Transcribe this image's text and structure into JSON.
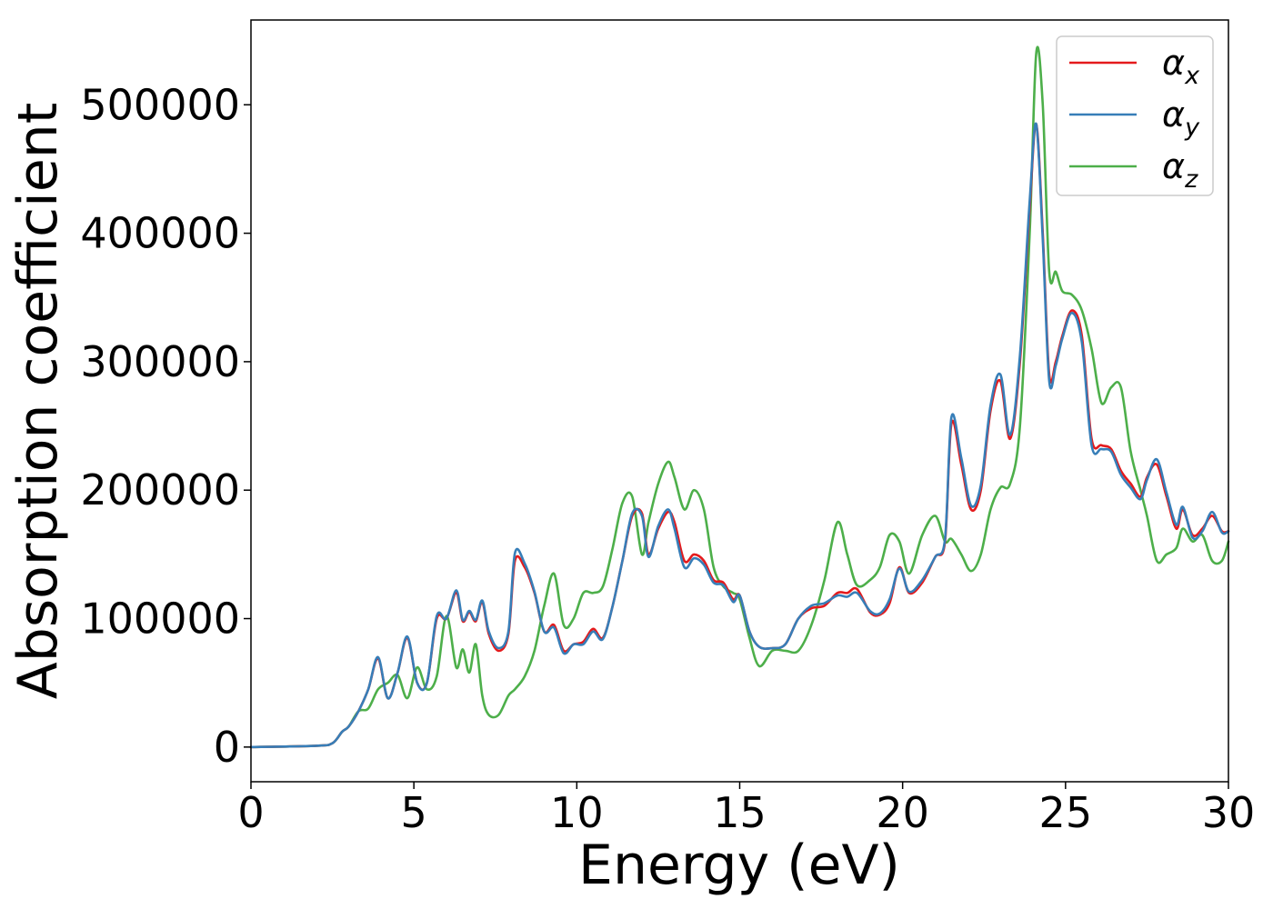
{
  "chart_data": {
    "type": "line",
    "xlabel": "Energy (eV)",
    "ylabel": "Absorption coefficient",
    "xlim": [
      0,
      30
    ],
    "ylim": [
      -27000,
      566000
    ],
    "xticks": [
      0,
      5,
      10,
      15,
      20,
      25,
      30
    ],
    "yticks": [
      0,
      100000,
      200000,
      300000,
      400000,
      500000
    ],
    "xtick_labels": [
      "0",
      "5",
      "10",
      "15",
      "20",
      "25",
      "30"
    ],
    "ytick_labels": [
      "0",
      "100000",
      "200000",
      "300000",
      "400000",
      "500000"
    ],
    "grid": false,
    "legend_position": "top-right",
    "series": [
      {
        "name": "α",
        "subscript": "x",
        "color": "#e41a1c",
        "x": [
          0,
          2,
          2.5,
          2.8,
          3.0,
          3.3,
          3.6,
          3.9,
          4.2,
          4.5,
          4.8,
          5.1,
          5.4,
          5.7,
          6.0,
          6.3,
          6.5,
          6.7,
          6.9,
          7.1,
          7.3,
          7.6,
          7.9,
          8.1,
          8.4,
          8.7,
          9.0,
          9.3,
          9.6,
          9.9,
          10.2,
          10.5,
          10.8,
          11.1,
          11.4,
          11.7,
          12.0,
          12.2,
          12.5,
          12.8,
          13.0,
          13.3,
          13.6,
          13.9,
          14.2,
          14.5,
          14.8,
          15.0,
          15.3,
          15.6,
          16.0,
          16.4,
          16.8,
          17.2,
          17.6,
          18.0,
          18.3,
          18.6,
          19.0,
          19.3,
          19.6,
          19.9,
          20.2,
          20.6,
          21.0,
          21.3,
          21.5,
          21.8,
          22.1,
          22.4,
          22.7,
          23.0,
          23.3,
          23.6,
          23.9,
          24.1,
          24.3,
          24.5,
          24.7,
          24.9,
          25.2,
          25.5,
          25.8,
          26.1,
          26.4,
          26.7,
          27.0,
          27.3,
          27.5,
          27.8,
          28.1,
          28.4,
          28.6,
          28.9,
          29.2,
          29.5,
          29.8,
          30
        ],
        "y": [
          0,
          1000,
          3000,
          12000,
          16000,
          28000,
          45000,
          69000,
          38000,
          58000,
          85000,
          50000,
          50000,
          100000,
          100000,
          120000,
          98000,
          105000,
          98000,
          113000,
          88000,
          75000,
          88000,
          145000,
          140000,
          120000,
          90000,
          95000,
          75000,
          80000,
          82000,
          92000,
          85000,
          110000,
          145000,
          180000,
          182000,
          150000,
          170000,
          183000,
          175000,
          145000,
          150000,
          145000,
          130000,
          128000,
          115000,
          118000,
          90000,
          78000,
          77000,
          80000,
          100000,
          108000,
          110000,
          120000,
          120000,
          123000,
          105000,
          103000,
          112000,
          140000,
          120000,
          128000,
          148000,
          160000,
          252000,
          220000,
          185000,
          200000,
          262000,
          285000,
          240000,
          300000,
          420000,
          485000,
          400000,
          290000,
          300000,
          320000,
          340000,
          320000,
          240000,
          235000,
          232000,
          215000,
          205000,
          195000,
          210000,
          220000,
          195000,
          170000,
          185000,
          165000,
          170000,
          180000,
          168000,
          168000
        ]
      },
      {
        "name": "α",
        "subscript": "y",
        "color": "#377eb8",
        "x": [
          0,
          2,
          2.5,
          2.8,
          3.0,
          3.3,
          3.6,
          3.9,
          4.2,
          4.5,
          4.8,
          5.1,
          5.4,
          5.7,
          6.0,
          6.3,
          6.5,
          6.7,
          6.9,
          7.1,
          7.3,
          7.6,
          7.9,
          8.1,
          8.4,
          8.7,
          9.0,
          9.3,
          9.6,
          9.9,
          10.2,
          10.5,
          10.8,
          11.1,
          11.4,
          11.7,
          12.0,
          12.2,
          12.5,
          12.8,
          13.0,
          13.3,
          13.6,
          13.9,
          14.2,
          14.5,
          14.8,
          15.0,
          15.3,
          15.6,
          16.0,
          16.4,
          16.8,
          17.2,
          17.6,
          18.0,
          18.3,
          18.6,
          19.0,
          19.3,
          19.6,
          19.9,
          20.2,
          20.6,
          21.0,
          21.3,
          21.5,
          21.8,
          22.1,
          22.4,
          22.7,
          23.0,
          23.3,
          23.6,
          23.9,
          24.1,
          24.3,
          24.5,
          24.7,
          24.9,
          25.2,
          25.5,
          25.8,
          26.1,
          26.4,
          26.7,
          27.0,
          27.3,
          27.5,
          27.8,
          28.1,
          28.4,
          28.6,
          28.9,
          29.2,
          29.5,
          29.8,
          30
        ],
        "y": [
          0,
          1000,
          3000,
          12000,
          16000,
          28000,
          45000,
          70000,
          38000,
          58000,
          86000,
          50000,
          50000,
          102000,
          100000,
          122000,
          99000,
          106000,
          99000,
          114000,
          90000,
          77000,
          90000,
          151000,
          143000,
          121000,
          90000,
          93000,
          73000,
          80000,
          80000,
          90000,
          84000,
          110000,
          145000,
          182000,
          180000,
          148000,
          172000,
          185000,
          170000,
          140000,
          147000,
          142000,
          128000,
          126000,
          113000,
          118000,
          90000,
          78000,
          77000,
          80000,
          100000,
          110000,
          112000,
          118000,
          117000,
          120000,
          106000,
          104000,
          115000,
          139000,
          121000,
          130000,
          148000,
          162000,
          257000,
          225000,
          188000,
          204000,
          266000,
          290000,
          243000,
          305000,
          425000,
          485000,
          395000,
          285000,
          297000,
          318000,
          338000,
          315000,
          235000,
          232000,
          230000,
          212000,
          202000,
          193000,
          208000,
          224000,
          198000,
          173000,
          187000,
          163000,
          168000,
          183000,
          167000,
          168000
        ]
      },
      {
        "name": "α",
        "subscript": "z",
        "color": "#4daf4a",
        "x": [
          0,
          2,
          2.5,
          2.8,
          3.0,
          3.3,
          3.6,
          3.9,
          4.2,
          4.5,
          4.8,
          5.1,
          5.4,
          5.7,
          6.0,
          6.3,
          6.5,
          6.7,
          6.9,
          7.1,
          7.3,
          7.6,
          7.9,
          8.1,
          8.4,
          8.7,
          9.0,
          9.3,
          9.6,
          9.9,
          10.2,
          10.5,
          10.8,
          11.1,
          11.4,
          11.7,
          12.0,
          12.2,
          12.5,
          12.8,
          13.0,
          13.3,
          13.6,
          13.9,
          14.2,
          14.5,
          14.8,
          15.0,
          15.3,
          15.6,
          16.0,
          16.4,
          16.8,
          17.2,
          17.6,
          18.0,
          18.3,
          18.6,
          19.0,
          19.3,
          19.6,
          19.9,
          20.2,
          20.6,
          21.0,
          21.3,
          21.5,
          21.8,
          22.1,
          22.4,
          22.7,
          23.0,
          23.3,
          23.6,
          23.9,
          24.1,
          24.3,
          24.5,
          24.7,
          24.9,
          25.2,
          25.5,
          25.8,
          26.1,
          26.4,
          26.7,
          27.0,
          27.3,
          27.5,
          27.8,
          28.1,
          28.4,
          28.6,
          28.9,
          29.2,
          29.5,
          29.8,
          30
        ],
        "y": [
          0,
          1000,
          3000,
          12000,
          16000,
          28000,
          30000,
          45000,
          50000,
          56000,
          38000,
          62000,
          45000,
          55000,
          102000,
          62000,
          76000,
          58000,
          80000,
          40000,
          25000,
          25000,
          40000,
          45000,
          55000,
          75000,
          110000,
          135000,
          95000,
          100000,
          120000,
          120000,
          125000,
          155000,
          190000,
          195000,
          150000,
          175000,
          205000,
          222000,
          210000,
          185000,
          200000,
          185000,
          140000,
          125000,
          120000,
          115000,
          85000,
          63000,
          75000,
          75000,
          75000,
          95000,
          130000,
          175000,
          150000,
          126000,
          130000,
          140000,
          165000,
          160000,
          135000,
          165000,
          180000,
          160000,
          162000,
          150000,
          137000,
          150000,
          185000,
          202000,
          205000,
          250000,
          400000,
          540000,
          500000,
          370000,
          370000,
          355000,
          352000,
          340000,
          310000,
          268000,
          280000,
          280000,
          230000,
          200000,
          180000,
          145000,
          150000,
          155000,
          170000,
          160000,
          165000,
          145000,
          145000,
          160000
        ]
      }
    ]
  }
}
